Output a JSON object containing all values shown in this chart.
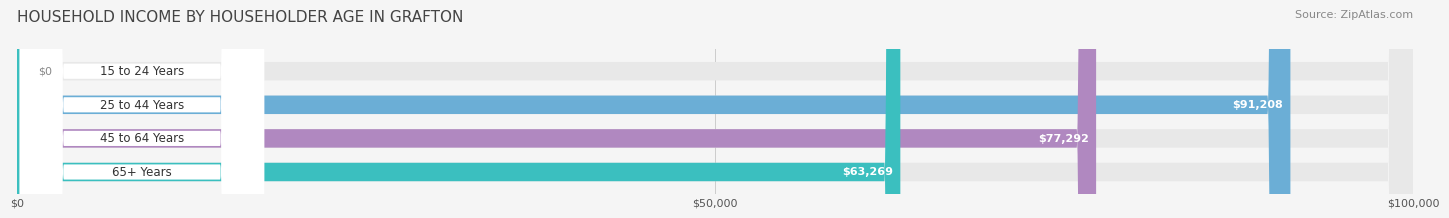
{
  "title": "HOUSEHOLD INCOME BY HOUSEHOLDER AGE IN GRAFTON",
  "source": "Source: ZipAtlas.com",
  "categories": [
    "15 to 24 Years",
    "25 to 44 Years",
    "45 to 64 Years",
    "65+ Years"
  ],
  "values": [
    0,
    91208,
    77292,
    63269
  ],
  "bar_colors": [
    "#f4a0a0",
    "#6baed6",
    "#b088c0",
    "#3bbfbf"
  ],
  "value_labels": [
    "$0",
    "$91,208",
    "$77,292",
    "$63,269"
  ],
  "background_color": "#f5f5f5",
  "bar_bg_color": "#e8e8e8",
  "xlim": [
    0,
    100000
  ],
  "xticks": [
    0,
    50000,
    100000
  ],
  "xtick_labels": [
    "$0",
    "$50,000",
    "$100,000"
  ],
  "title_fontsize": 11,
  "source_fontsize": 8,
  "bar_height": 0.55
}
